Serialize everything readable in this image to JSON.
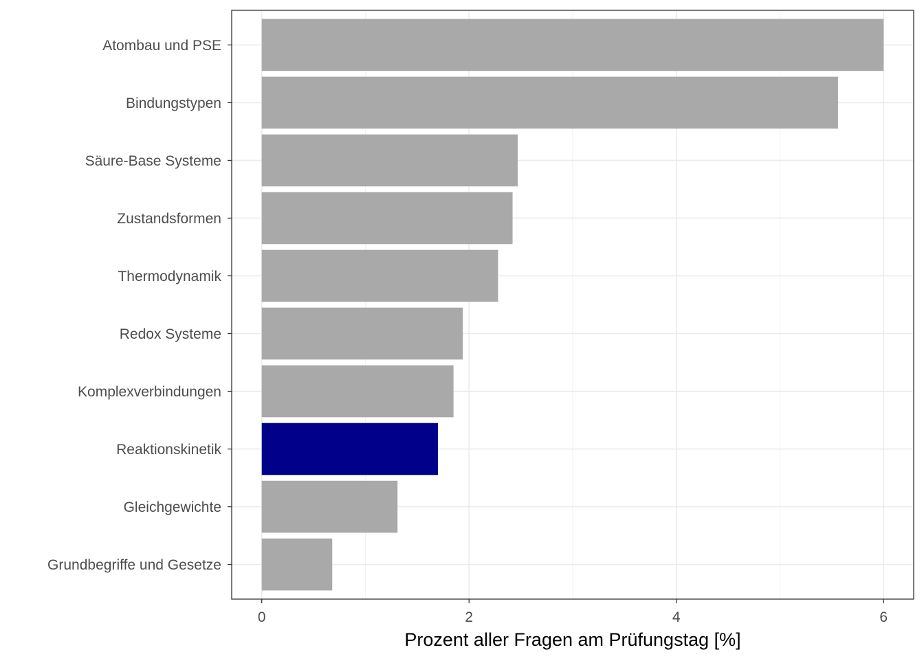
{
  "chart_data": {
    "type": "bar",
    "orientation": "horizontal",
    "categories": [
      "Atombau und PSE",
      "Bindungstypen",
      "Säure-Base Systeme",
      "Zustandsformen",
      "Thermodynamik",
      "Redox Systeme",
      "Komplexverbindungen",
      "Reaktionskinetik",
      "Gleichgewichte",
      "Grundbegriffe und Gesetze"
    ],
    "values": [
      6.0,
      5.56,
      2.47,
      2.42,
      2.28,
      1.94,
      1.85,
      1.7,
      1.31,
      0.68
    ],
    "highlight_category": "Reaktionskinetik",
    "colors": {
      "default": "#a9a9a9",
      "highlight": "#00008b"
    },
    "title": "",
    "xlabel": "Prozent aller Fragen am Prüfungstag [%]",
    "ylabel": "",
    "xlim": [
      -0.29,
      6.29
    ],
    "xticks": [
      0,
      2,
      4,
      6
    ],
    "xtick_labels": [
      "0",
      "2",
      "4",
      "6"
    ],
    "grid": true,
    "legend": "none"
  }
}
